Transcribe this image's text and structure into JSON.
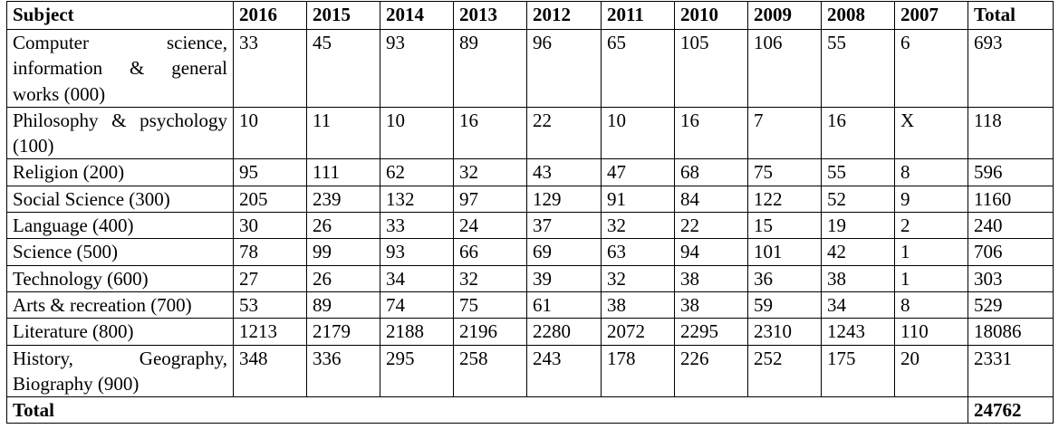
{
  "table": {
    "header": [
      "Subject",
      "2016",
      "2015",
      "2014",
      "2013",
      "2012",
      "2011",
      "2010",
      "2009",
      "2008",
      "2007",
      "Total"
    ],
    "rows": [
      [
        "Computer science, information & general works (000)",
        33,
        45,
        93,
        89,
        96,
        65,
        105,
        106,
        55,
        6,
        693
      ],
      [
        "Philosophy & psychology (100)",
        10,
        11,
        10,
        16,
        22,
        10,
        16,
        7,
        16,
        "X",
        118
      ],
      [
        "Religion (200)",
        95,
        111,
        62,
        32,
        43,
        47,
        68,
        75,
        55,
        8,
        596
      ],
      [
        "Social Science (300)",
        205,
        239,
        132,
        97,
        129,
        91,
        84,
        122,
        52,
        9,
        1160
      ],
      [
        "Language (400)",
        30,
        26,
        33,
        24,
        37,
        32,
        22,
        15,
        19,
        2,
        240
      ],
      [
        "Science (500)",
        78,
        99,
        93,
        66,
        69,
        63,
        94,
        101,
        42,
        1,
        706
      ],
      [
        "Technology (600)",
        27,
        26,
        34,
        32,
        39,
        32,
        38,
        36,
        38,
        1,
        303
      ],
      [
        "Arts & recreation (700)",
        53,
        89,
        74,
        75,
        61,
        38,
        38,
        59,
        34,
        8,
        529
      ],
      [
        "Literature (800)",
        1213,
        2179,
        2188,
        2196,
        2280,
        2072,
        2295,
        2310,
        1243,
        110,
        18086
      ],
      [
        "History, Geography, Biography (900)",
        348,
        336,
        295,
        258,
        243,
        178,
        226,
        252,
        175,
        20,
        2331
      ]
    ],
    "total": {
      "label": "Total",
      "value": 24762
    }
  }
}
